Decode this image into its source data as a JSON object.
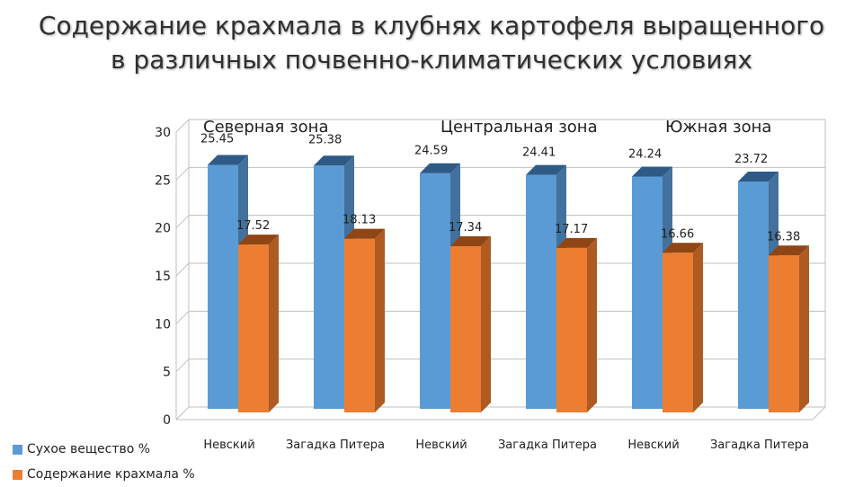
{
  "title": {
    "line1": "Содержание  крахмала в клубнях картофеля выращенного",
    "line2": "в  различных почвенно-климатических условиях"
  },
  "colors": {
    "series1": "#5b9bd5",
    "series2": "#ed7d31",
    "grid": "#bfbfbf"
  },
  "legend": [
    {
      "label": "Сухое вещество %",
      "color": "#5b9bd5"
    },
    {
      "label": "Содержание крахмала %",
      "color": "#ed7d31"
    }
  ],
  "chart_data": {
    "type": "bar",
    "title": "Содержание  крахмала в клубнях картофеля выращенного в  различных почвенно-климатических условиях",
    "categories": [
      "Невский",
      "Загадка Питера",
      "Невский",
      "Загадка Питера",
      "Невский",
      "Загадка Питера"
    ],
    "series": [
      {
        "name": "Сухое вещество %",
        "values": [
          25.45,
          25.38,
          24.59,
          24.41,
          24.24,
          23.72
        ],
        "labels": [
          "25.45",
          "25.38",
          "24.59",
          "24.41",
          "24.24",
          "23.72"
        ]
      },
      {
        "name": "Содержание крахмала %",
        "values": [
          17.52,
          18.13,
          17.34,
          17.17,
          16.66,
          16.38
        ],
        "labels": [
          "17.52",
          "18.13",
          "17.34",
          "17.17",
          "16.66",
          "16.38"
        ]
      }
    ],
    "annotations": [
      "Северная зона",
      "Центральная зона",
      "Южная зона"
    ],
    "yticks": [
      "0",
      "5",
      "10",
      "15",
      "20",
      "25",
      "30"
    ],
    "ylim": [
      0,
      30
    ],
    "grid": true,
    "legend_position": "bottom-left",
    "xlabel": "",
    "ylabel": ""
  }
}
